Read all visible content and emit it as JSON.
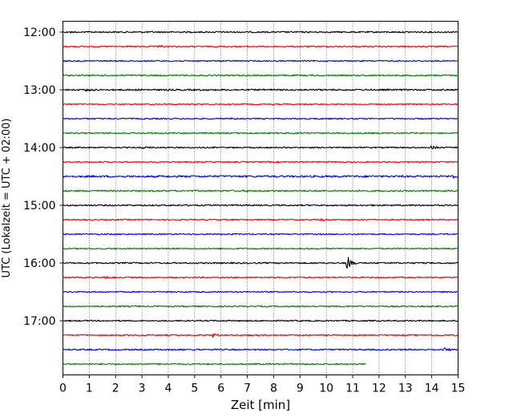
{
  "chart_data": {
    "type": "line",
    "chart_kind": "seismogram helicorder",
    "xlabel": "Zeit  [min]",
    "ylabel": "UTC (Lokalzeit = UTC + 02:00)",
    "xlim": [
      0,
      15
    ],
    "x_ticks": [
      0,
      1,
      2,
      3,
      4,
      5,
      6,
      7,
      8,
      9,
      10,
      11,
      12,
      13,
      14,
      15
    ],
    "x_tick_labels": [
      "0",
      "1",
      "2",
      "3",
      "4",
      "5",
      "6",
      "7",
      "8",
      "9",
      "10",
      "11",
      "12",
      "13",
      "14",
      "15"
    ],
    "y_tick_labels": [
      "12:00",
      "13:00",
      "14:00",
      "15:00",
      "16:00",
      "17:00"
    ],
    "x_grid": "dotted vertical lines at each minute",
    "y_grid": false,
    "line_minutes": 15,
    "trace_colors": [
      "#000000",
      "#ff0000",
      "#0000ff",
      "#008000"
    ],
    "traces": [
      {
        "start": "12:00",
        "color": "#000000",
        "end_min": 15,
        "noise": 0.9,
        "events": [
          {
            "t": 0.2,
            "amp": 1.5
          }
        ]
      },
      {
        "start": "12:15",
        "color": "#ff0000",
        "end_min": 15,
        "noise": 0.8,
        "events": [
          {
            "t": 3.6,
            "amp": 3.0
          }
        ]
      },
      {
        "start": "12:30",
        "color": "#0000ff",
        "end_min": 15,
        "noise": 0.8,
        "events": []
      },
      {
        "start": "12:45",
        "color": "#008000",
        "end_min": 15,
        "noise": 0.9,
        "events": []
      },
      {
        "start": "13:00",
        "color": "#000000",
        "end_min": 15,
        "noise": 1.0,
        "events": [
          {
            "t": 0.9,
            "amp": 2.0
          }
        ]
      },
      {
        "start": "13:15",
        "color": "#ff0000",
        "end_min": 15,
        "noise": 0.8,
        "events": []
      },
      {
        "start": "13:30",
        "color": "#0000ff",
        "end_min": 15,
        "noise": 0.8,
        "events": [
          {
            "t": 6.4,
            "amp": 1.5
          }
        ]
      },
      {
        "start": "13:45",
        "color": "#008000",
        "end_min": 15,
        "noise": 0.9,
        "events": []
      },
      {
        "start": "14:00",
        "color": "#000000",
        "end_min": 15,
        "noise": 0.8,
        "events": [
          {
            "t": 3.05,
            "amp": 2.5
          },
          {
            "t": 13.95,
            "amp": 6.0
          }
        ]
      },
      {
        "start": "14:15",
        "color": "#ff0000",
        "end_min": 15,
        "noise": 0.8,
        "events": []
      },
      {
        "start": "14:30",
        "color": "#0000ff",
        "end_min": 15,
        "noise": 1.2,
        "events": [
          {
            "t": 14.8,
            "amp": 2.0
          }
        ]
      },
      {
        "start": "14:45",
        "color": "#008000",
        "end_min": 15,
        "noise": 1.0,
        "events": [
          {
            "t": 7.0,
            "amp": 1.5
          }
        ]
      },
      {
        "start": "15:00",
        "color": "#000000",
        "end_min": 15,
        "noise": 0.9,
        "events": []
      },
      {
        "start": "15:15",
        "color": "#ff0000",
        "end_min": 15,
        "noise": 0.8,
        "events": [
          {
            "t": 9.8,
            "amp": 3.0
          }
        ]
      },
      {
        "start": "15:30",
        "color": "#0000ff",
        "end_min": 15,
        "noise": 0.8,
        "events": []
      },
      {
        "start": "15:45",
        "color": "#008000",
        "end_min": 15,
        "noise": 0.8,
        "events": [
          {
            "t": 9.2,
            "amp": 1.4
          }
        ]
      },
      {
        "start": "16:00",
        "color": "#000000",
        "end_min": 15,
        "noise": 0.9,
        "events": [
          {
            "t": 10.8,
            "amp": 13.0
          }
        ]
      },
      {
        "start": "16:15",
        "color": "#ff0000",
        "end_min": 15,
        "noise": 0.8,
        "events": [
          {
            "t": 1.6,
            "amp": 3.0
          }
        ]
      },
      {
        "start": "16:30",
        "color": "#0000ff",
        "end_min": 15,
        "noise": 0.8,
        "events": []
      },
      {
        "start": "16:45",
        "color": "#008000",
        "end_min": 15,
        "noise": 0.9,
        "events": []
      },
      {
        "start": "17:00",
        "color": "#000000",
        "end_min": 15,
        "noise": 0.8,
        "events": []
      },
      {
        "start": "17:15",
        "color": "#ff0000",
        "end_min": 15,
        "noise": 0.9,
        "events": [
          {
            "t": 5.7,
            "amp": 3.0
          }
        ]
      },
      {
        "start": "17:30",
        "color": "#0000ff",
        "end_min": 15,
        "noise": 0.9,
        "events": [
          {
            "t": 4.5,
            "amp": 1.5
          },
          {
            "t": 14.5,
            "amp": 3.5
          }
        ]
      },
      {
        "start": "17:45",
        "color": "#008000",
        "end_min": 11.5,
        "noise": 0.9,
        "events": []
      }
    ]
  }
}
